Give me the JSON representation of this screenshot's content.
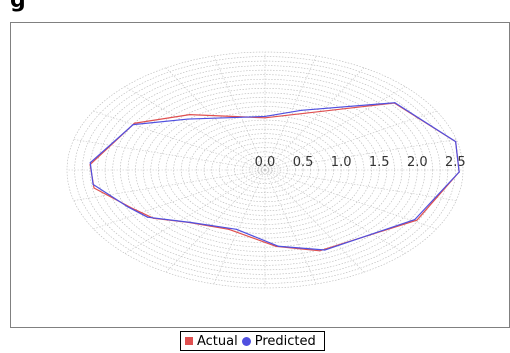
{
  "header": {
    "partial_title": "g"
  },
  "chart_data": {
    "type": "polar-line",
    "radial_ticks": [
      "0.0",
      "0.5",
      "1.0",
      "1.5",
      "2.0",
      "2.5"
    ],
    "rmax": 2.6,
    "grid": true,
    "legend_position": "bottom",
    "series": [
      {
        "name": "Actual",
        "color": "#e05050",
        "points": [
          {
            "angle": 0,
            "r": 1.15
          },
          {
            "angle": 23,
            "r": 1.36
          },
          {
            "angle": 49,
            "r": 2.25
          },
          {
            "angle": 76,
            "r": 2.58
          },
          {
            "angle": 91,
            "r": 2.55
          },
          {
            "angle": 119,
            "r": 2.28
          },
          {
            "angle": 158,
            "r": 1.92
          },
          {
            "angle": 175,
            "r": 1.69
          },
          {
            "angle": 200,
            "r": 1.39
          },
          {
            "angle": 221,
            "r": 1.53
          },
          {
            "angle": 234,
            "r": 1.81
          },
          {
            "angle": 245,
            "r": 1.95
          },
          {
            "angle": 260,
            "r": 2.28
          },
          {
            "angle": 273,
            "r": 2.3
          },
          {
            "angle": 301,
            "r": 2.0
          },
          {
            "angle": 321,
            "r": 1.57
          }
        ]
      },
      {
        "name": "Predicted",
        "color": "#5050e0",
        "points": [
          {
            "angle": 0,
            "r": 1.18
          },
          {
            "angle": 20,
            "r": 1.4
          },
          {
            "angle": 49,
            "r": 2.26
          },
          {
            "angle": 76,
            "r": 2.58
          },
          {
            "angle": 91,
            "r": 2.55
          },
          {
            "angle": 119,
            "r": 2.25
          },
          {
            "angle": 156,
            "r": 1.93
          },
          {
            "angle": 174,
            "r": 1.69
          },
          {
            "angle": 196,
            "r": 1.36
          },
          {
            "angle": 220,
            "r": 1.51
          },
          {
            "angle": 236,
            "r": 1.86
          },
          {
            "angle": 246,
            "r": 1.98
          },
          {
            "angle": 262,
            "r": 2.28
          },
          {
            "angle": 274,
            "r": 2.3
          },
          {
            "angle": 300,
            "r": 2.0
          },
          {
            "angle": 318,
            "r": 1.51
          }
        ]
      }
    ]
  },
  "legend": [
    {
      "label": "Actual",
      "color": "#e05050",
      "marker": "square"
    },
    {
      "label": "Predicted",
      "color": "#5050e0",
      "marker": "circle"
    }
  ]
}
